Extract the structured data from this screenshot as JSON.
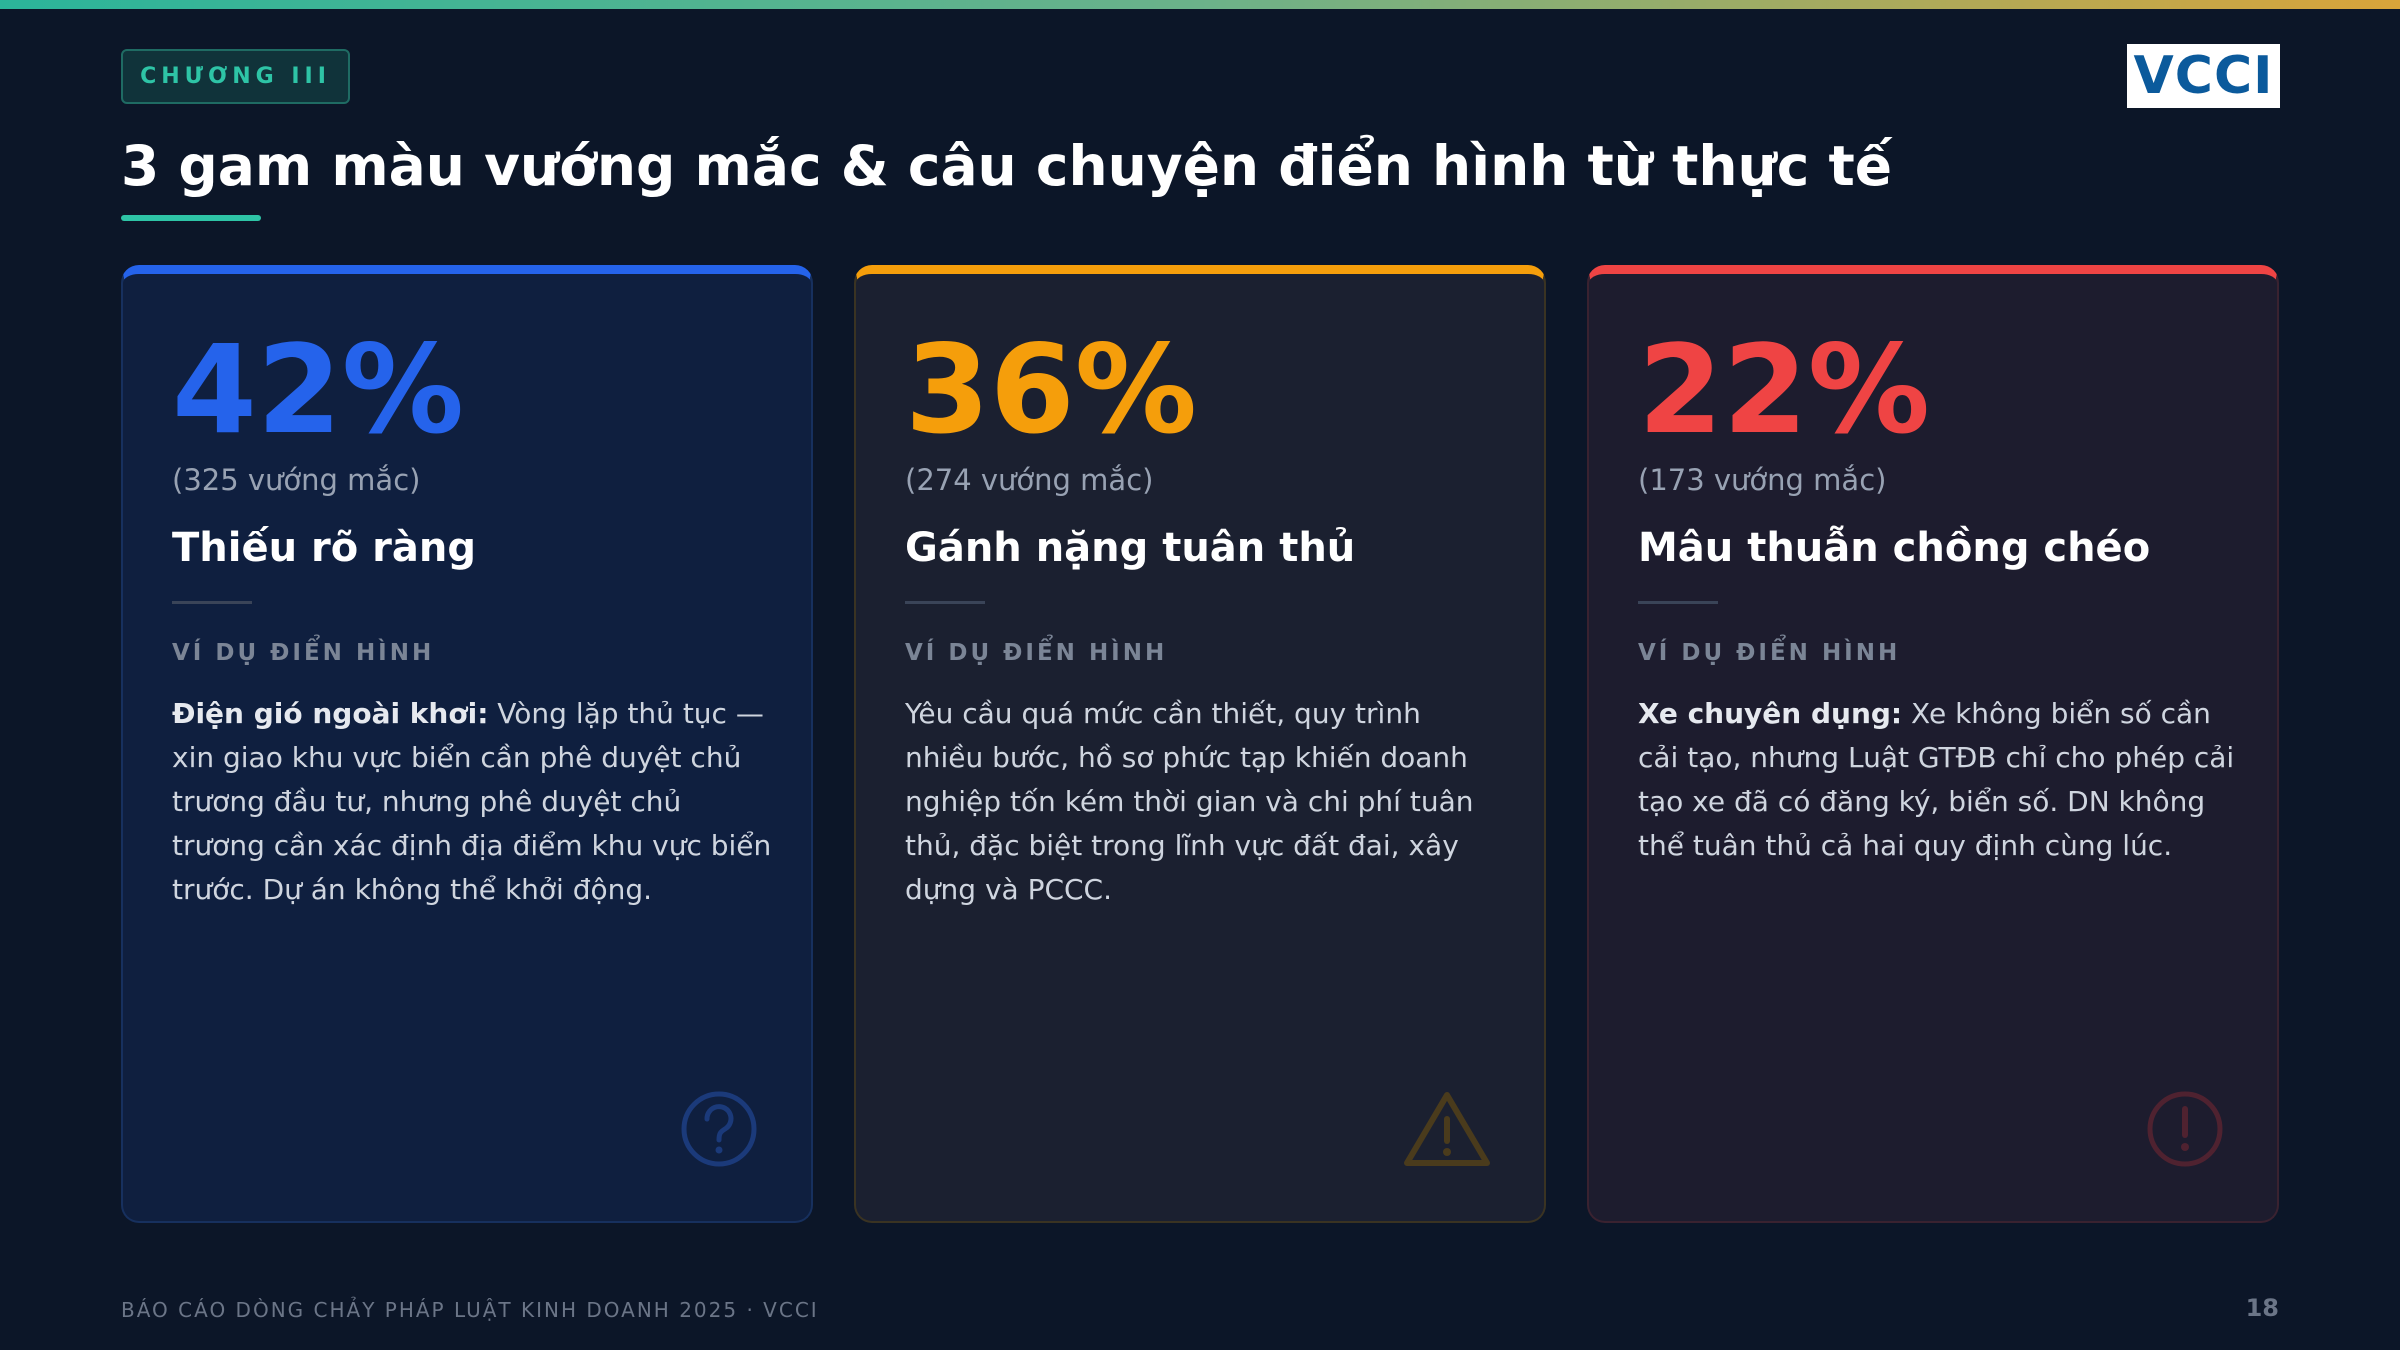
{
  "header": {
    "chapter": "CHƯƠNG III",
    "logo": "VCCI",
    "title": "3 gam màu vướng mắc & câu chuyện điển hình từ thực tế"
  },
  "cards": [
    {
      "percent": "42%",
      "count": "(325 vướng mắc)",
      "heading": "Thiếu rõ ràng",
      "label": "VÍ DỤ ĐIỂN HÌNH",
      "body_bold": "Điện gió ngoài khơi:",
      "body": " Vòng lặp thủ tục — xin giao khu vực biển cần phê duyệt chủ trương đầu tư, nhưng phê duyệt chủ trương cần xác định địa điểm khu vực biển trước. Dự án không thể khởi động."
    },
    {
      "percent": "36%",
      "count": "(274 vướng mắc)",
      "heading": "Gánh nặng tuân thủ",
      "label": "VÍ DỤ ĐIỂN HÌNH",
      "body": "Yêu cầu quá mức cần thiết, quy trình nhiều bước, hồ sơ phức tạp khiến doanh nghiệp tốn kém thời gian và chi phí tuân thủ, đặc biệt trong lĩnh vực đất đai, xây dựng và PCCC."
    },
    {
      "percent": "22%",
      "count": "(173 vướng mắc)",
      "heading": "Mâu thuẫn chồng chéo",
      "label": "VÍ DỤ ĐIỂN HÌNH",
      "body_bold": "Xe chuyên dụng:",
      "body": " Xe không biển số cần cải tạo, nhưng Luật GTĐB chỉ cho phép cải tạo xe đã có đăng ký, biển số. DN không thể tuân thủ cả hai quy định cùng lúc."
    }
  ],
  "footer": {
    "text": "BÁO CÁO DÒNG CHẢY PHÁP LUẬT KINH DOANH 2025 · VCCI",
    "page": "18"
  }
}
